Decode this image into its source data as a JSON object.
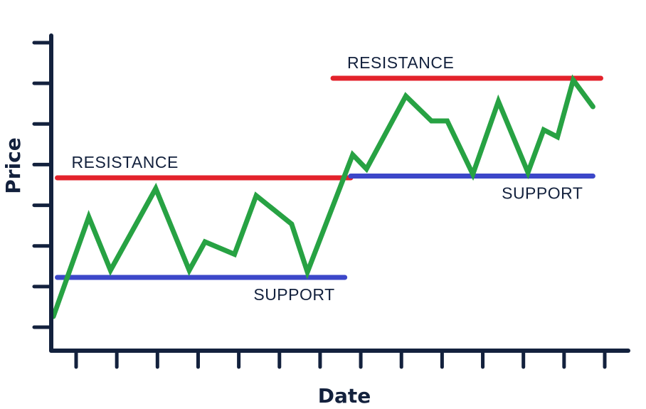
{
  "chart_data": {
    "type": "line",
    "title": "",
    "xlabel": "Date",
    "ylabel": "Price",
    "x_tick_count": 14,
    "y_tick_count": 8,
    "xlim": [
      0,
      14
    ],
    "ylim": [
      0,
      8
    ],
    "series": [
      {
        "color": "#27a243",
        "points": [
          [
            0.0,
            0.3
          ],
          [
            0.9,
            3.1
          ],
          [
            1.45,
            1.6
          ],
          [
            2.1,
            2.9
          ],
          [
            2.6,
            3.9
          ],
          [
            3.45,
            1.6
          ],
          [
            3.85,
            2.4
          ],
          [
            4.6,
            2.05
          ],
          [
            5.15,
            3.7
          ],
          [
            6.05,
            2.9
          ],
          [
            6.45,
            1.55
          ],
          [
            7.6,
            4.85
          ],
          [
            7.95,
            4.45
          ],
          [
            8.95,
            6.5
          ],
          [
            9.6,
            5.8
          ],
          [
            10.0,
            5.8
          ],
          [
            10.65,
            4.3
          ],
          [
            11.3,
            6.35
          ],
          [
            12.05,
            4.35
          ],
          [
            12.45,
            5.55
          ],
          [
            12.8,
            5.35
          ],
          [
            13.2,
            6.95
          ],
          [
            13.7,
            6.2
          ]
        ]
      }
    ],
    "levels": [
      {
        "kind": "resistance",
        "label": "RESISTANCE",
        "y": 4.2,
        "x_start": 0.1,
        "x_end": 7.55,
        "color": "#e3222b"
      },
      {
        "kind": "support",
        "label": "SUPPORT",
        "y": 1.4,
        "x_start": 0.1,
        "x_end": 7.4,
        "color": "#3c47c9"
      },
      {
        "kind": "resistance",
        "label": "RESISTANCE",
        "y": 7.0,
        "x_start": 7.1,
        "x_end": 13.9,
        "color": "#e3222b"
      },
      {
        "kind": "support",
        "label": "SUPPORT",
        "y": 4.25,
        "x_start": 7.55,
        "x_end": 13.7,
        "color": "#3c47c9"
      }
    ],
    "grid": false,
    "legend": "none",
    "axis_color": "#13213d"
  }
}
